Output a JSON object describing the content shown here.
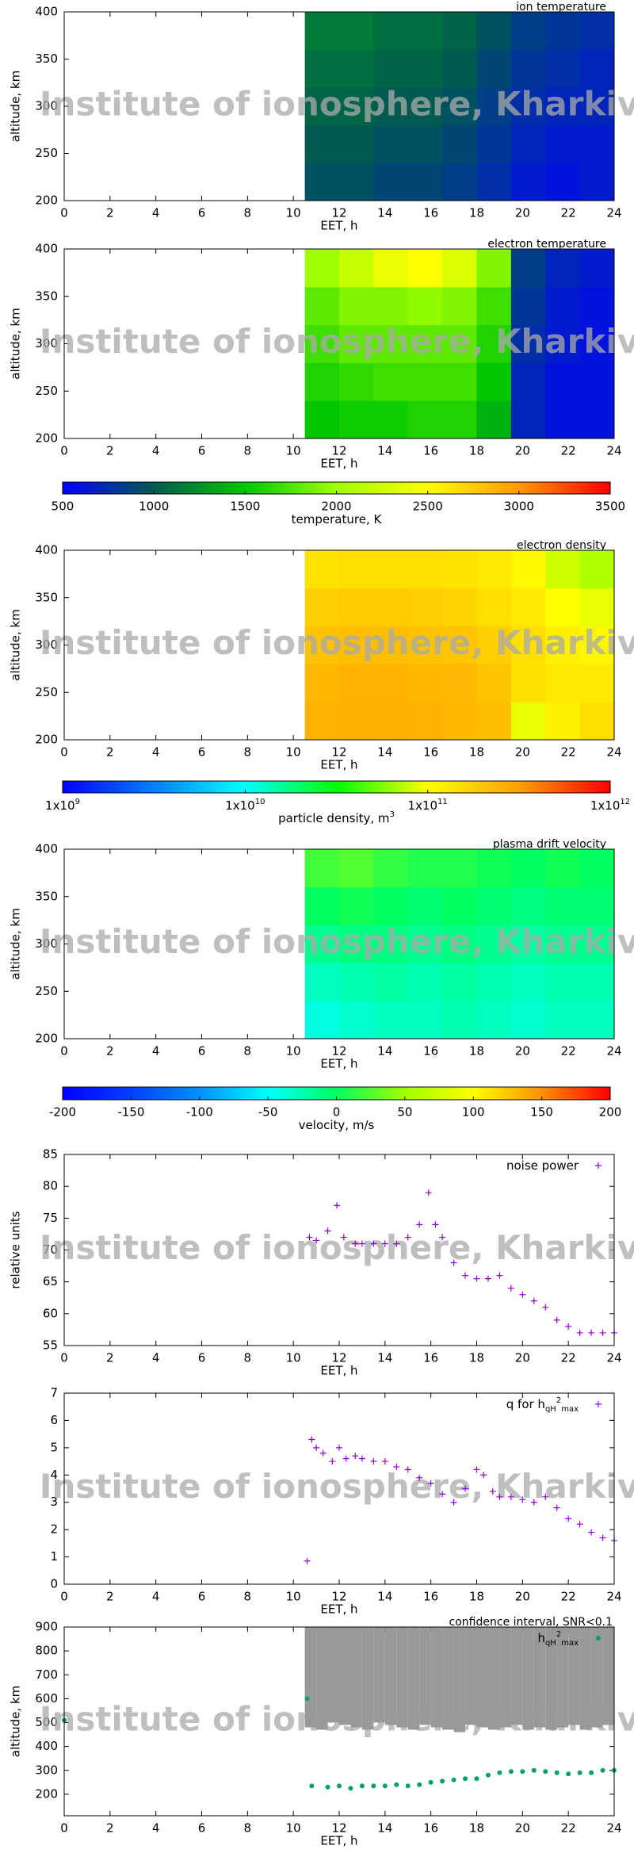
{
  "chart_data": [
    {
      "type": "heatmap",
      "title": "ion temperature",
      "xlabel": "EET, h",
      "ylabel": "altitude, km",
      "watermark": "Institute of ionosphere, Kharkiv",
      "xlim": [
        0,
        24
      ],
      "xticks": [
        0,
        2,
        4,
        6,
        8,
        10,
        12,
        14,
        16,
        18,
        20,
        22,
        24
      ],
      "ylim": [
        200,
        400
      ],
      "yticks": [
        200,
        250,
        300,
        350,
        400
      ],
      "xbins": [
        10.5,
        12,
        13.5,
        15,
        16.5,
        18,
        19.5,
        21,
        22.5,
        24
      ],
      "ybins": [
        200,
        240,
        280,
        320,
        360,
        400
      ],
      "zlim": [
        500,
        3500
      ],
      "log": false,
      "colors": [
        "#0000ff",
        "#005a50",
        "#00c800",
        "#a0ff00",
        "#ffff00",
        "#ff9900",
        "#ff0000"
      ],
      "values": [
        [
          950,
          950,
          900,
          900,
          850,
          750,
          650,
          600,
          650
        ],
        [
          1000,
          1000,
          950,
          950,
          900,
          800,
          700,
          650,
          650
        ],
        [
          1050,
          1050,
          1000,
          1000,
          950,
          850,
          750,
          700,
          700
        ],
        [
          1100,
          1100,
          1050,
          1050,
          1000,
          900,
          800,
          750,
          700
        ],
        [
          1150,
          1150,
          1100,
          1100,
          1050,
          950,
          850,
          800,
          750
        ]
      ]
    },
    {
      "type": "heatmap",
      "title": "electron temperature",
      "xlabel": "EET, h",
      "ylabel": "altitude, km",
      "watermark": "Institute of ionosphere, Kharkiv",
      "xlim": [
        0,
        24
      ],
      "xticks": [
        0,
        2,
        4,
        6,
        8,
        10,
        12,
        14,
        16,
        18,
        20,
        22,
        24
      ],
      "ylim": [
        200,
        400
      ],
      "yticks": [
        200,
        250,
        300,
        350,
        400
      ],
      "xbins": [
        10.5,
        12,
        13.5,
        15,
        16.5,
        18,
        19.5,
        21,
        22.5,
        24
      ],
      "ybins": [
        200,
        240,
        280,
        320,
        360,
        400
      ],
      "zlim": [
        500,
        3500
      ],
      "log": false,
      "colors": [
        "#0000ff",
        "#005a50",
        "#00c800",
        "#a0ff00",
        "#ffff00",
        "#ff9900",
        "#ff0000"
      ],
      "values": [
        [
          1500,
          1550,
          1550,
          1600,
          1600,
          1400,
          700,
          600,
          600
        ],
        [
          1600,
          1650,
          1700,
          1700,
          1700,
          1500,
          700,
          600,
          600
        ],
        [
          1700,
          1800,
          1800,
          1800,
          1800,
          1600,
          750,
          650,
          600
        ],
        [
          1800,
          1900,
          1900,
          1950,
          1900,
          1700,
          800,
          650,
          600
        ],
        [
          2000,
          2200,
          2400,
          2500,
          2300,
          1900,
          850,
          700,
          650
        ]
      ]
    },
    {
      "type": "colorbar",
      "label": "temperature, K",
      "zlim": [
        500,
        3500
      ],
      "log": false,
      "colors": [
        "#0000ff",
        "#005a50",
        "#00c800",
        "#a0ff00",
        "#ffff00",
        "#ff9900",
        "#ff0000"
      ],
      "ticks": [
        500,
        1000,
        1500,
        2000,
        2500,
        3000,
        3500
      ]
    },
    {
      "type": "heatmap",
      "title": "electron density",
      "xlabel": "EET, h",
      "ylabel": "altitude, km",
      "watermark": "Institute of ionosphere, Kharkiv",
      "xlim": [
        0,
        24
      ],
      "xticks": [
        0,
        2,
        4,
        6,
        8,
        10,
        12,
        14,
        16,
        18,
        20,
        22,
        24
      ],
      "ylim": [
        200,
        400
      ],
      "yticks": [
        200,
        250,
        300,
        350,
        400
      ],
      "xbins": [
        10.5,
        12,
        13.5,
        15,
        16.5,
        18,
        19.5,
        21,
        22.5,
        24
      ],
      "ybins": [
        200,
        240,
        280,
        320,
        360,
        400
      ],
      "zlim": [
        1000000000,
        1000000000000
      ],
      "log": true,
      "colors": [
        "#0000ff",
        "#0080ff",
        "#00ffff",
        "#00ff00",
        "#ffff00",
        "#ffa000",
        "#ff0000"
      ],
      "values": [
        [
          250000000000.0,
          260000000000.0,
          260000000000.0,
          250000000000.0,
          240000000000.0,
          220000000000.0,
          90000000000.0,
          120000000000.0,
          150000000000.0
        ],
        [
          240000000000.0,
          250000000000.0,
          250000000000.0,
          240000000000.0,
          230000000000.0,
          200000000000.0,
          150000000000.0,
          130000000000.0,
          130000000000.0
        ],
        [
          210000000000.0,
          220000000000.0,
          220000000000.0,
          210000000000.0,
          200000000000.0,
          180000000000.0,
          150000000000.0,
          120000000000.0,
          110000000000.0
        ],
        [
          180000000000.0,
          190000000000.0,
          190000000000.0,
          180000000000.0,
          170000000000.0,
          150000000000.0,
          130000000000.0,
          100000000000.0,
          90000000000.0
        ],
        [
          140000000000.0,
          150000000000.0,
          150000000000.0,
          150000000000.0,
          140000000000.0,
          130000000000.0,
          110000000000.0,
          80000000000.0,
          70000000000.0
        ]
      ]
    },
    {
      "type": "colorbar",
      "label": "particle density, m",
      "label_sup": "3",
      "zlim": [
        1000000000,
        1000000000000
      ],
      "log": true,
      "colors": [
        "#0000ff",
        "#0080ff",
        "#00ffff",
        "#00ff00",
        "#ffff00",
        "#ffa000",
        "#ff0000"
      ],
      "ticks": [
        {
          "value": 1000000000,
          "label": "1x10",
          "sup": "9"
        },
        {
          "value": 10000000000,
          "label": "1x10",
          "sup": "10"
        },
        {
          "value": 100000000000,
          "label": "1x10",
          "sup": "11"
        },
        {
          "value": 1000000000000,
          "label": "1x10",
          "sup": "12"
        }
      ]
    },
    {
      "type": "heatmap",
      "title": "plasma drift velocity",
      "xlabel": "EET, h",
      "ylabel": "altitude, km",
      "watermark": "Institute of ionosphere, Kharkiv",
      "xlim": [
        0,
        24
      ],
      "xticks": [
        0,
        2,
        4,
        6,
        8,
        10,
        12,
        14,
        16,
        18,
        20,
        22,
        24
      ],
      "ylim": [
        200,
        400
      ],
      "yticks": [
        200,
        250,
        300,
        350,
        400
      ],
      "xbins": [
        10.5,
        12,
        13.5,
        15,
        16.5,
        18,
        19.5,
        21,
        22.5,
        24
      ],
      "ybins": [
        200,
        240,
        280,
        320,
        360,
        400
      ],
      "zlim": [
        -200,
        200
      ],
      "log": false,
      "colors": [
        "#0000ff",
        "#0040ff",
        "#0090ff",
        "#00ffff",
        "#00ff60",
        "#a0ff00",
        "#ffff00",
        "#ff9000",
        "#ff0000"
      ],
      "values": [
        [
          -40,
          -35,
          -30,
          -30,
          -25,
          -30,
          -35,
          -30,
          -30
        ],
        [
          -30,
          -25,
          -20,
          -25,
          -20,
          -25,
          -30,
          -25,
          -25
        ],
        [
          -15,
          -10,
          -10,
          -15,
          -10,
          -15,
          -20,
          -15,
          -15
        ],
        [
          0,
          5,
          0,
          -5,
          0,
          -5,
          -10,
          -5,
          -5
        ],
        [
          20,
          25,
          15,
          10,
          10,
          5,
          0,
          5,
          0
        ]
      ]
    },
    {
      "type": "colorbar",
      "label": "velocity, m/s",
      "zlim": [
        -200,
        200
      ],
      "log": false,
      "colors": [
        "#0000ff",
        "#0040ff",
        "#0090ff",
        "#00ffff",
        "#00ff60",
        "#a0ff00",
        "#ffff00",
        "#ff9000",
        "#ff0000"
      ],
      "ticks": [
        -200,
        -150,
        -100,
        -50,
        0,
        50,
        100,
        150,
        200
      ]
    },
    {
      "type": "scatter",
      "xlabel": "EET, h",
      "ylabel": "relative units",
      "watermark": "Institute of ionosphere, Kharkiv",
      "xlim": [
        0,
        24
      ],
      "xticks": [
        0,
        2,
        4,
        6,
        8,
        10,
        12,
        14,
        16,
        18,
        20,
        22,
        24
      ],
      "ylim": [
        55,
        85
      ],
      "yticks": [
        55,
        60,
        65,
        70,
        75,
        80,
        85
      ],
      "series": [
        {
          "name": "noise power",
          "color": "#9400d3",
          "marker": "+",
          "x": [
            10.7,
            11,
            11.5,
            11.9,
            12.2,
            12.7,
            13,
            13.5,
            14,
            14.5,
            15,
            15.5,
            15.9,
            16.2,
            16.5,
            17,
            17.5,
            18,
            18.5,
            19,
            19.5,
            20,
            20.5,
            21,
            21.5,
            22,
            22.5,
            23,
            23.5,
            24
          ],
          "values": [
            72,
            71.5,
            73,
            77,
            72,
            71,
            71,
            71,
            71,
            71,
            72,
            74,
            79,
            74,
            72,
            68,
            66,
            65.5,
            65.5,
            66,
            64,
            63,
            62,
            61,
            59,
            58,
            57,
            57,
            57,
            57
          ]
        }
      ]
    },
    {
      "type": "scatter",
      "xlabel": "EET, h",
      "watermark": "Institute of ionosphere, Kharkiv",
      "xlim": [
        0,
        24
      ],
      "xticks": [
        0,
        2,
        4,
        6,
        8,
        10,
        12,
        14,
        16,
        18,
        20,
        22,
        24
      ],
      "ylim": [
        0,
        7
      ],
      "yticks": [
        0,
        1,
        2,
        3,
        4,
        5,
        6,
        7
      ],
      "series": [
        {
          "name": "q for h",
          "name_sub": "qH",
          "name_sup": "2",
          "name_sub2": "max",
          "color": "#9400d3",
          "marker": "+",
          "x": [
            10.6,
            10.8,
            11,
            11.3,
            11.7,
            12,
            12.3,
            12.7,
            13,
            13.5,
            14,
            14.5,
            15,
            15.5,
            16,
            16.5,
            17,
            17.5,
            18,
            18.3,
            18.7,
            19,
            19.5,
            20,
            20.5,
            21,
            21.5,
            22,
            22.5,
            23,
            23.5,
            24
          ],
          "values": [
            0.85,
            5.3,
            5,
            4.8,
            4.5,
            5,
            4.6,
            4.7,
            4.6,
            4.5,
            4.5,
            4.3,
            4.2,
            3.9,
            3.7,
            3.3,
            3,
            3.5,
            4.2,
            4,
            3.4,
            3.2,
            3.2,
            3.1,
            3,
            3.2,
            2.8,
            2.4,
            2.2,
            1.9,
            1.7,
            1.6
          ]
        }
      ]
    },
    {
      "type": "scatter",
      "xlabel": "EET, h",
      "ylabel": "altitude, km",
      "watermark": "Institute of ionosphere, Kharkiv",
      "xlim": [
        0,
        24
      ],
      "xticks": [
        0,
        2,
        4,
        6,
        8,
        10,
        12,
        14,
        16,
        18,
        20,
        22,
        24
      ],
      "ylim": [
        110,
        900
      ],
      "yticks": [
        200,
        300,
        400,
        500,
        600,
        700,
        800,
        900
      ],
      "series": [
        {
          "name": "confidence interval, SNR<0.1",
          "color": "#999999",
          "marker": "range",
          "x": [
            10.5,
            11,
            11.5,
            12,
            12.5,
            13,
            13.5,
            14,
            14.5,
            15,
            15.5,
            16,
            16.5,
            17,
            17.5,
            18,
            18.5,
            19,
            19.5,
            20,
            20.5,
            21,
            21.5,
            22,
            22.5,
            23,
            23.5
          ],
          "low": [
            480,
            470,
            500,
            490,
            480,
            470,
            500,
            490,
            480,
            470,
            490,
            480,
            470,
            460,
            490,
            480,
            470,
            480,
            490,
            470,
            480,
            470,
            480,
            490,
            470,
            480,
            490
          ],
          "high": [
            900,
            900,
            900,
            900,
            900,
            900,
            900,
            900,
            900,
            900,
            900,
            900,
            900,
            900,
            900,
            900,
            900,
            900,
            900,
            900,
            900,
            900,
            900,
            900,
            900,
            900,
            900
          ]
        },
        {
          "name": "h",
          "name_sub": "qH",
          "name_sup": "2",
          "name_sub2": "max",
          "color": "#009e73",
          "marker": "dot",
          "x": [
            0,
            10.6,
            10.8,
            11.5,
            12,
            12.5,
            13,
            13.5,
            14,
            14.5,
            15,
            15.5,
            16,
            16.5,
            17,
            17.5,
            18,
            18.5,
            19,
            19.5,
            20,
            20.5,
            21,
            21.5,
            22,
            22.5,
            23,
            23.5,
            24
          ],
          "values": [
            510,
            600,
            235,
            230,
            235,
            225,
            235,
            235,
            235,
            240,
            235,
            240,
            250,
            255,
            260,
            265,
            265,
            280,
            290,
            295,
            295,
            300,
            295,
            290,
            285,
            290,
            290,
            300,
            300
          ]
        }
      ]
    }
  ]
}
